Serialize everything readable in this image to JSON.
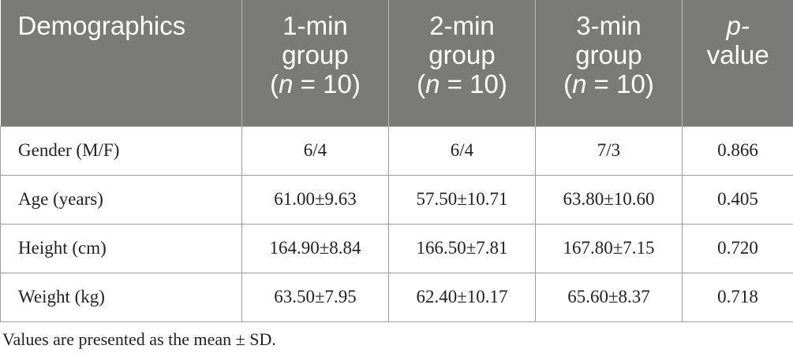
{
  "table": {
    "header": [
      {
        "main": [
          "Demographics"
        ],
        "n": null
      },
      {
        "main": [
          "1-min",
          "group"
        ],
        "n": "10"
      },
      {
        "main": [
          "2-min",
          "group"
        ],
        "n": "10"
      },
      {
        "main": [
          "3-min",
          "group"
        ],
        "n": "10"
      },
      {
        "main": [
          "p-",
          "value"
        ],
        "n": null
      }
    ],
    "rows": [
      {
        "label": "Gender (M/F)",
        "g1": "6/4",
        "g2": "6/4",
        "g3": "7/3",
        "p": "0.866"
      },
      {
        "label": "Age (years)",
        "g1": "61.00±9.63",
        "g2": "57.50±10.71",
        "g3": "63.80±10.60",
        "p": "0.405"
      },
      {
        "label": "Height (cm)",
        "g1": "164.90±8.84",
        "g2": "166.50±7.81",
        "g3": "167.80±7.15",
        "p": "0.720"
      },
      {
        "label": "Weight (kg)",
        "g1": "63.50±7.95",
        "g2": "62.40±10.17",
        "g3": "65.60±8.37",
        "p": "0.718"
      }
    ]
  },
  "footnote": "Values are presented as the mean ± SD.",
  "colors": {
    "header_bg": "#7a7a78",
    "header_text": "#ffffff",
    "border": "#9e9e9e",
    "body_text": "#222222"
  }
}
